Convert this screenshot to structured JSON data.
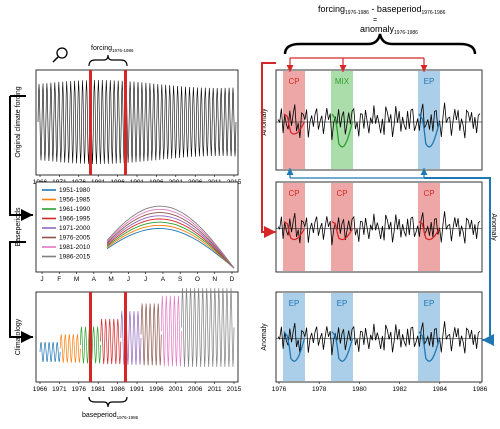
{
  "top_formula": {
    "numerator_main": "forcing",
    "numerator_sub": "1976-1986",
    "minus": " - baseperiod",
    "minus_sub": "1976-1986",
    "equals": "=",
    "result_main": "anomaly",
    "result_sub": "1976-1986"
  },
  "forcing_label": {
    "main": "forcing",
    "sub": "1976-1986"
  },
  "baseperiod_label": {
    "main": "baseperiod",
    "sub": "1976-1986"
  },
  "left_panels": {
    "top": {
      "ylabel": "Original climate forcing",
      "xticks": [
        "1966",
        "1971",
        "1976",
        "1981",
        "1986",
        "1991",
        "1996",
        "2001",
        "2006",
        "2011",
        "2015"
      ]
    },
    "middle": {
      "ylabel": "Baseperiods",
      "xticks": [
        "J",
        "F",
        "M",
        "A",
        "M",
        "J",
        "J",
        "A",
        "S",
        "O",
        "N",
        "D"
      ],
      "legend": [
        {
          "label": "1951-1980",
          "color": "#1f77b4"
        },
        {
          "label": "1956-1985",
          "color": "#ff7f0e"
        },
        {
          "label": "1961-1990",
          "color": "#2ca02c"
        },
        {
          "label": "1966-1995",
          "color": "#d62728"
        },
        {
          "label": "1971-2000",
          "color": "#9467bd"
        },
        {
          "label": "1976-2005",
          "color": "#8c564b"
        },
        {
          "label": "1981-2010",
          "color": "#e377c2"
        },
        {
          "label": "1986-2015",
          "color": "#7f7f7f"
        }
      ]
    },
    "bottom": {
      "ylabel": "Climatology",
      "xticks": [
        "1966",
        "1971",
        "1976",
        "1981",
        "1986",
        "1991",
        "1996",
        "2001",
        "2006",
        "2011",
        "2015"
      ]
    }
  },
  "right_panels": {
    "ylabel": "Anomaly",
    "xticks": [
      "1976",
      "1978",
      "1980",
      "1982",
      "1984",
      "1986"
    ],
    "top": {
      "boxes": [
        {
          "label": "CP",
          "color": "#e88a8a"
        },
        {
          "label": "MIX",
          "color": "#8fd18f"
        },
        {
          "label": "EP",
          "color": "#8fbfe0"
        }
      ]
    },
    "middle": {
      "boxes": [
        {
          "label": "CP",
          "color": "#e88a8a"
        },
        {
          "label": "CP",
          "color": "#e88a8a"
        },
        {
          "label": "CP",
          "color": "#e88a8a"
        }
      ]
    },
    "bottom": {
      "boxes": [
        {
          "label": "EP",
          "color": "#8fbfe0"
        },
        {
          "label": "EP",
          "color": "#8fbfe0"
        },
        {
          "label": "EP",
          "color": "#8fbfe0"
        }
      ]
    }
  },
  "colors": {
    "red": "#d62728",
    "blue": "#1f77b4",
    "black": "#000000"
  }
}
